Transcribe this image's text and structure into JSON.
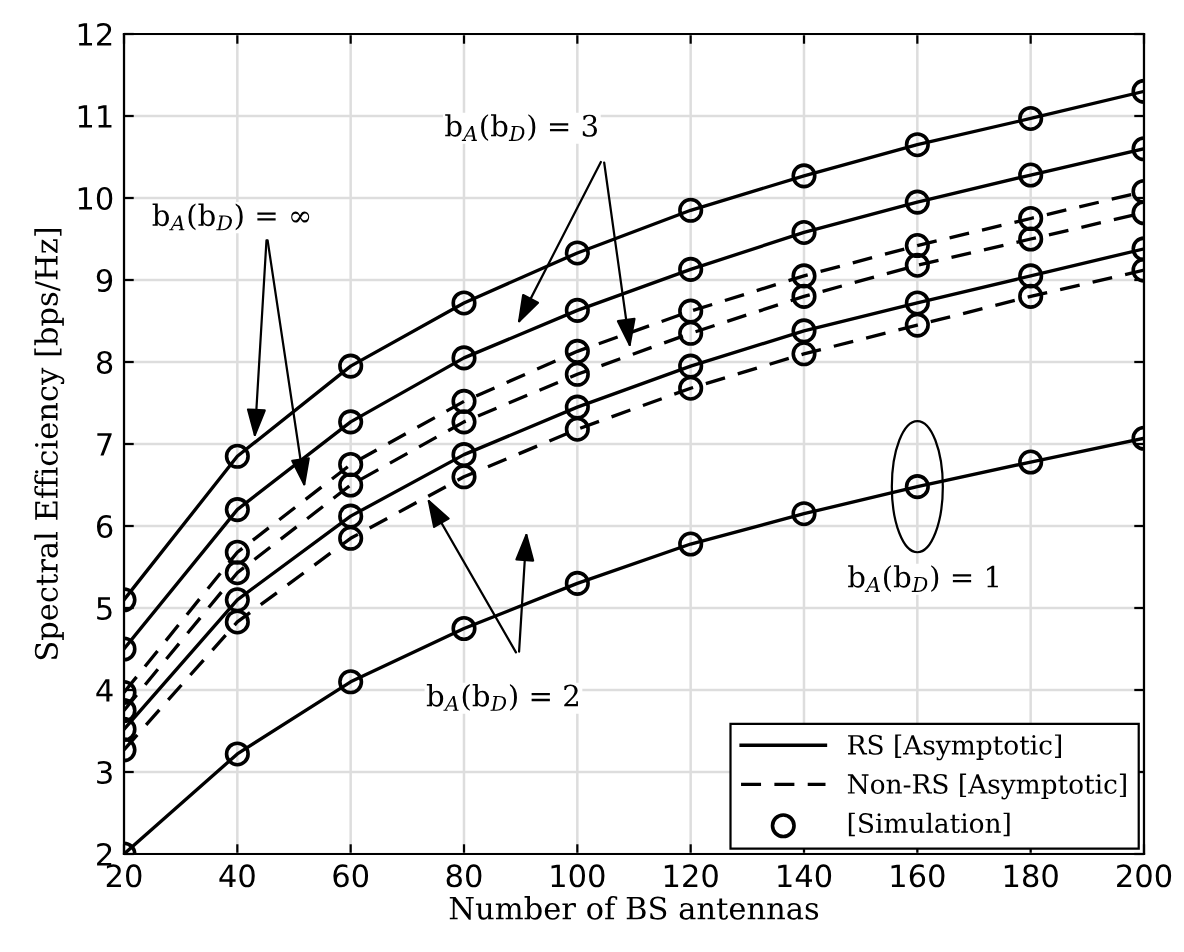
{
  "chart_data": {
    "type": "line",
    "xlabel": "Number of BS antennas",
    "ylabel": "Spectral Efficiency [bps/Hz]",
    "x": [
      20,
      40,
      60,
      80,
      100,
      120,
      140,
      160,
      180,
      200
    ],
    "series": [
      {
        "name": "RS [Asymptotic]",
        "color": "#000000",
        "line_style": "solid",
        "values": [
          5.1,
          6.85,
          7.95,
          8.72,
          9.33,
          9.85,
          10.27,
          10.65,
          10.97,
          11.3
        ]
      },
      {
        "color": "#000000",
        "line_style": "solid",
        "values": [
          4.5,
          6.2,
          7.27,
          8.05,
          8.63,
          9.13,
          9.58,
          9.95,
          10.28,
          10.6
        ]
      },
      {
        "name": "Non-RS [Asymptotic]",
        "color": "#000000",
        "line_style": "dashed",
        "values": [
          3.97,
          5.68,
          6.75,
          7.52,
          8.13,
          8.62,
          9.05,
          9.42,
          9.75,
          10.08
        ]
      },
      {
        "color": "#000000",
        "line_style": "dashed",
        "values": [
          3.75,
          5.43,
          6.5,
          7.27,
          7.85,
          8.35,
          8.8,
          9.18,
          9.5,
          9.82
        ]
      },
      {
        "color": "#000000",
        "line_style": "solid",
        "values": [
          3.52,
          5.1,
          6.12,
          6.87,
          7.45,
          7.95,
          8.38,
          8.72,
          9.05,
          9.38
        ]
      },
      {
        "color": "#000000",
        "line_style": "dashed",
        "values": [
          3.27,
          4.83,
          5.85,
          6.6,
          7.18,
          7.68,
          8.1,
          8.45,
          8.8,
          9.12
        ]
      },
      {
        "color": "#000000",
        "line_style": "solid",
        "values": [
          2.0,
          3.22,
          4.1,
          4.75,
          5.3,
          5.78,
          6.15,
          6.48,
          6.78,
          7.07
        ]
      },
      {
        "name": "[Simulation]",
        "type": "scatter",
        "marker": "circle",
        "color": "#000000",
        "x": [
          20,
          40,
          60,
          80,
          100,
          120,
          140,
          160,
          180,
          200,
          20,
          40,
          60,
          80,
          100,
          120,
          140,
          160,
          180,
          200,
          20,
          40,
          60,
          80,
          100,
          120,
          140,
          160,
          180,
          200,
          20,
          40,
          60,
          80,
          100,
          120,
          140,
          160,
          180,
          200,
          20,
          40,
          60,
          80,
          100,
          120,
          140,
          160,
          180,
          200,
          20,
          40,
          60,
          80,
          100,
          120,
          140,
          160,
          180,
          200,
          20,
          40,
          60,
          80,
          100,
          120,
          140,
          160,
          180,
          200
        ],
        "values": [
          5.1,
          6.85,
          7.95,
          8.72,
          9.33,
          9.85,
          10.27,
          10.65,
          10.97,
          11.3,
          4.5,
          6.2,
          7.27,
          8.05,
          8.63,
          9.13,
          9.58,
          9.95,
          10.28,
          10.6,
          3.97,
          5.68,
          6.75,
          7.52,
          8.13,
          8.62,
          9.05,
          9.42,
          9.75,
          10.08,
          3.75,
          5.43,
          6.5,
          7.27,
          7.85,
          8.35,
          8.8,
          9.18,
          9.5,
          9.82,
          3.52,
          5.1,
          6.12,
          6.87,
          7.45,
          7.95,
          8.38,
          8.72,
          9.05,
          9.38,
          3.27,
          4.83,
          5.85,
          6.6,
          7.18,
          7.68,
          8.1,
          8.45,
          8.8,
          9.12,
          2.0,
          3.22,
          4.1,
          4.75,
          5.3,
          5.78,
          6.15,
          6.48,
          6.78,
          7.07
        ]
      }
    ],
    "annotations": [
      {
        "text": "b$_{A}$(b$_{D}$) = ∞",
        "x": 43,
        "y": 7.0
      },
      {
        "text": "b$_{A}$(b$_{D}$) = 3",
        "x": 89,
        "y": 8.4
      },
      {
        "text": "b$_{A}$(b$_{D}$) = 2",
        "x": 73,
        "y": 6.4
      },
      {
        "text": "b$_{A}$(b$_{D}$) = 1",
        "x": 160,
        "y": 6.48
      }
    ],
    "xlim": [
      20,
      200
    ],
    "ylim": [
      2,
      12
    ],
    "xticks": [
      20,
      40,
      60,
      80,
      100,
      120,
      140,
      160,
      180,
      200
    ],
    "yticks": [
      2,
      3,
      4,
      5,
      6,
      7,
      8,
      9,
      10,
      11,
      12
    ],
    "grid": true,
    "legend": "bottom right"
  }
}
